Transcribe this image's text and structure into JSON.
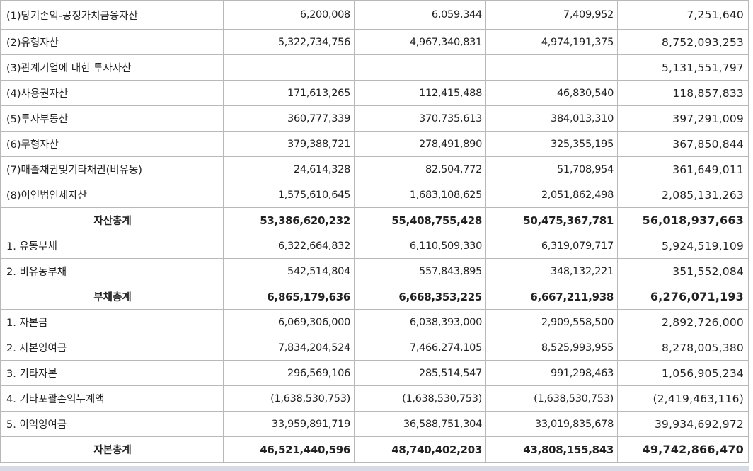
{
  "table": {
    "rows": [
      {
        "label": "(1)당기손익-공정가치금융자산",
        "values": [
          "6,200,008",
          "6,059,344",
          "7,409,952",
          "7,251,640"
        ],
        "total": false
      },
      {
        "label": "(2)유형자산",
        "values": [
          "5,322,734,756",
          "4,967,340,831",
          "4,974,191,375",
          "8,752,093,253"
        ],
        "total": false
      },
      {
        "label": "(3)관계기업에 대한 투자자산",
        "values": [
          "",
          "",
          "",
          "5,131,551,797"
        ],
        "total": false
      },
      {
        "label": "(4)사용권자산",
        "values": [
          "171,613,265",
          "112,415,488",
          "46,830,540",
          "118,857,833"
        ],
        "total": false
      },
      {
        "label": "(5)투자부동산",
        "values": [
          "360,777,339",
          "370,735,613",
          "384,013,310",
          "397,291,009"
        ],
        "total": false
      },
      {
        "label": "(6)무형자산",
        "values": [
          "379,388,721",
          "278,491,890",
          "325,355,195",
          "367,850,844"
        ],
        "total": false
      },
      {
        "label": "(7)매출채권및기타채권(비유동)",
        "values": [
          "24,614,328",
          "82,504,772",
          "51,708,954",
          "361,649,011"
        ],
        "total": false
      },
      {
        "label": "(8)이연법인세자산",
        "values": [
          "1,575,610,645",
          "1,683,108,625",
          "2,051,862,498",
          "2,085,131,263"
        ],
        "total": false
      },
      {
        "label": "자산총계",
        "values": [
          "53,386,620,232",
          "55,408,755,428",
          "50,475,367,781",
          "56,018,937,663"
        ],
        "total": true
      },
      {
        "label": "1. 유동부채",
        "values": [
          "6,322,664,832",
          "6,110,509,330",
          "6,319,079,717",
          "5,924,519,109"
        ],
        "total": false
      },
      {
        "label": "2. 비유동부채",
        "values": [
          "542,514,804",
          "557,843,895",
          "348,132,221",
          "351,552,084"
        ],
        "total": false
      },
      {
        "label": "부채총계",
        "values": [
          "6,865,179,636",
          "6,668,353,225",
          "6,667,211,938",
          "6,276,071,193"
        ],
        "total": true
      },
      {
        "label": "1. 자본금",
        "values": [
          "6,069,306,000",
          "6,038,393,000",
          "2,909,558,500",
          "2,892,726,000"
        ],
        "total": false
      },
      {
        "label": "2. 자본잉여금",
        "values": [
          "7,834,204,524",
          "7,466,274,105",
          "8,525,993,955",
          "8,278,005,380"
        ],
        "total": false
      },
      {
        "label": "3. 기타자본",
        "values": [
          "296,569,106",
          "285,514,547",
          "991,298,463",
          "1,056,905,234"
        ],
        "total": false
      },
      {
        "label": "4. 기타포괄손익누계액",
        "values": [
          "(1,638,530,753)",
          "(1,638,530,753)",
          "(1,638,530,753)",
          "(2,419,463,116)"
        ],
        "total": false
      },
      {
        "label": "5. 이익잉여금",
        "values": [
          "33,959,891,719",
          "36,588,751,304",
          "33,019,835,678",
          "39,934,692,972"
        ],
        "total": false
      },
      {
        "label": "자본총계",
        "values": [
          "46,521,440,596",
          "48,740,402,203",
          "43,808,155,843",
          "49,742,866,470"
        ],
        "total": true
      }
    ]
  }
}
